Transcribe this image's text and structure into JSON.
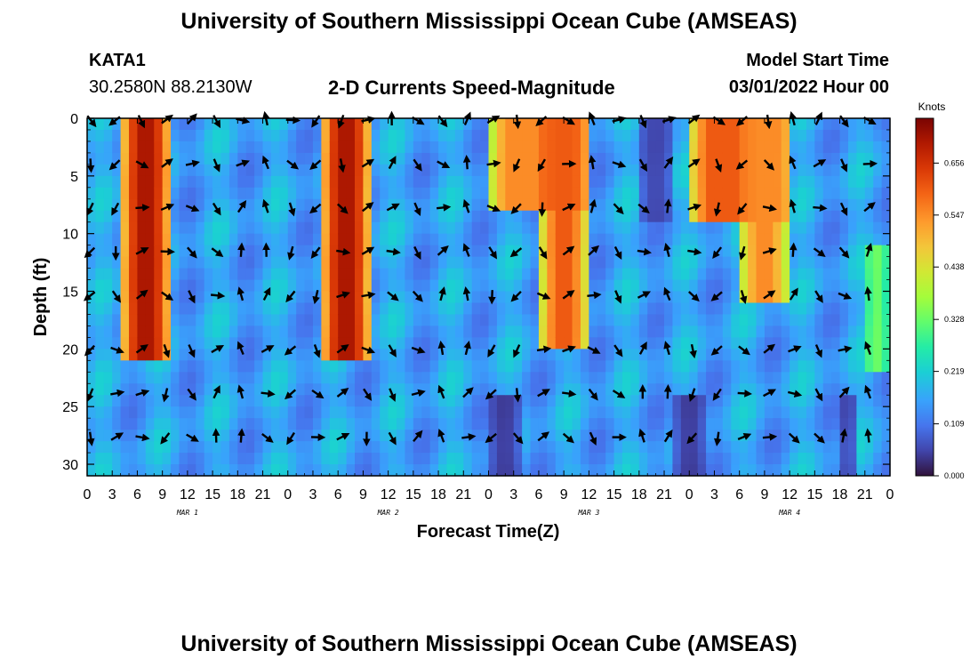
{
  "page": {
    "title_top": "University of Southern Mississippi Ocean Cube (AMSEAS)",
    "title_bottom": "University of Southern Mississippi Ocean Cube (AMSEAS)",
    "station": "KATA1",
    "coords": "30.2580N  88.2130W",
    "subtitle": "2-D Currents Speed-Magnitude",
    "model_label": "Model Start Time",
    "model_start": "03/01/2022 Hour 00"
  },
  "chart_data": {
    "type": "heatmap",
    "title": "2-D Currents Speed-Magnitude",
    "xlabel": "Forecast Time(Z)",
    "ylabel": "Depth (ft)",
    "xlim": [
      0,
      96
    ],
    "ylim": [
      0,
      31
    ],
    "x_ticks": [
      0,
      3,
      6,
      9,
      12,
      15,
      18,
      21,
      24,
      27,
      30,
      33,
      36,
      39,
      42,
      45,
      48,
      51,
      54,
      57,
      60,
      63,
      66,
      69,
      72,
      75,
      78,
      81,
      84,
      87,
      90,
      93,
      96
    ],
    "x_tick_labels": [
      "0",
      "3",
      "6",
      "9",
      "12",
      "15",
      "18",
      "21",
      "0",
      "3",
      "6",
      "9",
      "12",
      "15",
      "18",
      "21",
      "0",
      "3",
      "6",
      "9",
      "12",
      "15",
      "18",
      "21",
      "0",
      "3",
      "6",
      "9",
      "12",
      "15",
      "18",
      "21",
      "0"
    ],
    "date_labels": [
      {
        "hour": 12,
        "text": "MAR 1"
      },
      {
        "hour": 36,
        "text": "MAR 2"
      },
      {
        "hour": 60,
        "text": "MAR 3"
      },
      {
        "hour": 84,
        "text": "MAR 4"
      }
    ],
    "y_ticks": [
      0,
      5,
      10,
      15,
      20,
      25,
      30
    ],
    "colorbar": {
      "label": "Knots",
      "min": 0,
      "max": 0.75,
      "tick_values": [
        0,
        0.109,
        0.219,
        0.328,
        0.438,
        0.547,
        0.656
      ],
      "tick_labels": [
        "0.000",
        "0.109",
        "0.219",
        "0.328",
        "0.438",
        "0.547",
        "0.656"
      ]
    },
    "speed_features": [
      {
        "hour_start": 4,
        "hour_end": 10,
        "depth_top": 0,
        "depth_bottom": 21,
        "speed": 0.7
      },
      {
        "hour_start": 28,
        "hour_end": 34,
        "depth_top": 0,
        "depth_bottom": 21,
        "speed": 0.7
      },
      {
        "hour_start": 48,
        "hour_end": 60,
        "depth_top": 0,
        "depth_bottom": 8,
        "speed": 0.55
      },
      {
        "hour_start": 54,
        "hour_end": 60,
        "depth_top": 0,
        "depth_bottom": 20,
        "speed": 0.6
      },
      {
        "hour_start": 72,
        "hour_end": 84,
        "depth_top": 0,
        "depth_bottom": 9,
        "speed": 0.6
      },
      {
        "hour_start": 78,
        "hour_end": 84,
        "depth_top": 0,
        "depth_bottom": 16,
        "speed": 0.55
      },
      {
        "hour_start": 93,
        "hour_end": 96,
        "depth_top": 11,
        "depth_bottom": 22,
        "speed": 0.35
      },
      {
        "hour_start": 66,
        "hour_end": 70,
        "depth_top": 0,
        "depth_bottom": 9,
        "speed": 0.05
      },
      {
        "hour_start": 48,
        "hour_end": 52,
        "depth_top": 24,
        "depth_bottom": 31,
        "speed": 0.03
      },
      {
        "hour_start": 70,
        "hour_end": 74,
        "depth_top": 24,
        "depth_bottom": 31,
        "speed": 0.03
      },
      {
        "hour_start": 90,
        "hour_end": 92,
        "depth_top": 24,
        "depth_bottom": 31,
        "speed": 0.02
      }
    ],
    "arrow_hours": [
      0,
      3,
      6,
      9,
      12,
      15,
      18,
      21,
      24,
      27,
      30,
      33,
      36,
      39,
      42,
      45,
      48,
      51,
      54,
      57,
      60,
      63,
      66,
      69,
      72,
      75,
      78,
      81,
      84,
      87,
      90,
      93
    ],
    "arrow_depths": [
      0,
      3.8,
      7.6,
      11.4,
      15.2,
      19.9,
      23.7,
      27.5
    ]
  }
}
